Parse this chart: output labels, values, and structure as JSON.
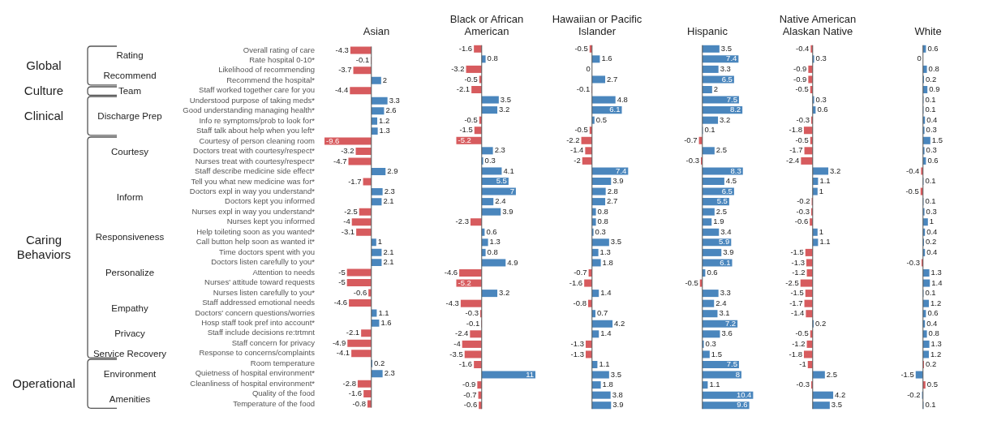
{
  "chart_data": [
    {
      "type": "bar",
      "orientation": "horizontal",
      "title": "Asian",
      "data_labels": true,
      "tick_labels": "y",
      "categories": [
        "Overall rating of care",
        "Rate hospital 0-10*",
        "Likelihood of recommending",
        "Recommend the hospital*",
        "Staff worked together care for you",
        "Understood purpose of taking meds*",
        "Good understanding managing health*",
        "Info re symptoms/prob to look for*",
        "Staff talk about help when you left*",
        "Courtesy of person cleaning room",
        "Doctors treat with courtesy/respect*",
        "Nurses treat with courtesy/respect*",
        "Staff describe medicine side effect*",
        "Tell you what new medicine was for*",
        "Doctors expl in way you understand*",
        "Doctors kept you informed",
        "Nurses expl in way you understand*",
        "Nurses kept you informed",
        "Help toileting soon as you wanted*",
        "Call button help soon as wanted it*",
        "Time doctors spent with you",
        "Doctors listen carefully to you*",
        "Attention to needs",
        "Nurses' attitude toward requests",
        "Nurses listen carefully to you*",
        "Staff addressed emotional needs",
        "Doctors' concern questions/worries",
        "Hosp staff took pref into account*",
        "Staff include decisions re:trtmnt",
        "Staff concern for privacy",
        "Response to concerns/complaints",
        "Room temperature",
        "Quietness of hospital environment*",
        "Cleanliness of hospital environment*",
        "Quality of the food",
        "Temperature of the food"
      ],
      "values": [
        -4.3,
        -0.1,
        -3.7,
        2,
        -4.4,
        3.3,
        2.6,
        1.2,
        1.3,
        -9.6,
        -3.2,
        -4.7,
        2.9,
        -1.7,
        2.3,
        2.1,
        -2.5,
        -4,
        -3.1,
        1,
        2.1,
        2.1,
        -5,
        -5,
        -0.6,
        -4.6,
        1.1,
        1.6,
        -2.1,
        -4.9,
        -4.1,
        0.2,
        2.3,
        -2.8,
        -1.6,
        -0.8
      ],
      "colors": [
        "#d75b5e",
        "#d75b5e",
        "#d75b5e",
        "#4a86bd",
        "#d75b5e",
        "#4a86bd",
        "#4a86bd",
        "#4a86bd",
        "#4a86bd",
        "#d75b5e",
        "#d75b5e",
        "#d75b5e",
        "#4a86bd",
        "#d75b5e",
        "#4a86bd",
        "#4a86bd",
        "#d75b5e",
        "#d75b5e",
        "#d75b5e",
        "#4a86bd",
        "#4a86bd",
        "#4a86bd",
        "#d75b5e",
        "#d75b5e",
        "#d75b5e",
        "#d75b5e",
        "#4a86bd",
        "#4a86bd",
        "#d75b5e",
        "#d75b5e",
        "#d75b5e",
        "#4a86bd",
        "#4a86bd",
        "#d75b5e",
        "#d75b5e",
        "#d75b5e"
      ],
      "annotations": [
        "Global",
        "Rating",
        "Recommend",
        "Culture",
        "Team",
        "Clinical",
        "Discharge Prep",
        "Caring Behaviors",
        "Courtesy",
        "Inform",
        "Responsiveness",
        "Personalize",
        "Empathy",
        "Privacy",
        "Service Recovery",
        "Operational",
        "Environment",
        "Amenities"
      ]
    },
    {
      "type": "bar",
      "orientation": "horizontal",
      "title": "Black or African American",
      "data_labels": true,
      "tick_labels": false,
      "categories": [
        null,
        null,
        null,
        null,
        null,
        null,
        null,
        null,
        null,
        null,
        null,
        null,
        null,
        null,
        null,
        null,
        null,
        null,
        null,
        null,
        null,
        null,
        null,
        null,
        null,
        null,
        null,
        null,
        null,
        null,
        null,
        null,
        null,
        null,
        null,
        null
      ],
      "values": [
        -1.6,
        0.8,
        -3.2,
        -0.5,
        -2.1,
        3.5,
        3.2,
        -0.5,
        -1.5,
        -5.2,
        2.3,
        0.3,
        4.1,
        5.5,
        7,
        2.4,
        3.9,
        -2.3,
        0.6,
        1.3,
        0.8,
        4.9,
        -4.6,
        -5.2,
        3.2,
        -4.3,
        -0.3,
        -0.1,
        -2.4,
        -4,
        -3.5,
        -1.6,
        11,
        -0.9,
        -0.7,
        -0.6
      ],
      "colors": [
        "#d75b5e",
        "#4a86bd",
        "#d75b5e",
        "#d75b5e",
        "#d75b5e",
        "#4a86bd",
        "#4a86bd",
        "#d75b5e",
        "#d75b5e",
        "#d75b5e",
        "#4a86bd",
        "#4a86bd",
        "#4a86bd",
        "#4a86bd",
        "#4a86bd",
        "#4a86bd",
        "#4a86bd",
        "#d75b5e",
        "#4a86bd",
        "#4a86bd",
        "#4a86bd",
        "#4a86bd",
        "#d75b5e",
        "#d75b5e",
        "#4a86bd",
        "#d75b5e",
        "#d75b5e",
        "#d75b5e",
        "#d75b5e",
        "#d75b5e",
        "#d75b5e",
        "#d75b5e",
        "#4a86bd",
        "#d75b5e",
        "#d75b5e",
        "#d75b5e"
      ]
    },
    {
      "type": "bar",
      "orientation": "horizontal",
      "title": "Hawaiian or Pacific Islander",
      "data_labels": true,
      "tick_labels": false,
      "categories": [
        null,
        null,
        null,
        null,
        null,
        null,
        null,
        null,
        null,
        null,
        null,
        null,
        null,
        null,
        null,
        null,
        null,
        null,
        null,
        null,
        null,
        null,
        null,
        null,
        null,
        null,
        null,
        null,
        null,
        null,
        null,
        null,
        null,
        null,
        null,
        null
      ],
      "values": [
        -0.5,
        1.6,
        0,
        2.7,
        -0.1,
        4.8,
        6.1,
        0.5,
        -0.5,
        -2.2,
        -1.4,
        -2,
        7.4,
        3.9,
        2.8,
        2.7,
        0.8,
        0.8,
        0.3,
        3.5,
        1.3,
        1.8,
        -0.7,
        -1.6,
        1.4,
        -0.8,
        0.7,
        4.2,
        1.4,
        -1.3,
        -1.3,
        1.1,
        3.5,
        1.8,
        3.8,
        3.9
      ],
      "colors": [
        "#d75b5e",
        "#4a86bd",
        "#4a86bd",
        "#4a86bd",
        "#d75b5e",
        "#4a86bd",
        "#4a86bd",
        "#4a86bd",
        "#d75b5e",
        "#d75b5e",
        "#d75b5e",
        "#d75b5e",
        "#4a86bd",
        "#4a86bd",
        "#4a86bd",
        "#4a86bd",
        "#4a86bd",
        "#4a86bd",
        "#4a86bd",
        "#4a86bd",
        "#4a86bd",
        "#4a86bd",
        "#d75b5e",
        "#d75b5e",
        "#4a86bd",
        "#d75b5e",
        "#4a86bd",
        "#4a86bd",
        "#4a86bd",
        "#d75b5e",
        "#d75b5e",
        "#4a86bd",
        "#4a86bd",
        "#4a86bd",
        "#4a86bd",
        "#4a86bd"
      ]
    },
    {
      "type": "bar",
      "orientation": "horizontal",
      "title": "Hispanic",
      "data_labels": true,
      "tick_labels": false,
      "categories": [
        null,
        null,
        null,
        null,
        null,
        null,
        null,
        null,
        null,
        null,
        null,
        null,
        null,
        null,
        null,
        null,
        null,
        null,
        null,
        null,
        null,
        null,
        null,
        null,
        null,
        null,
        null,
        null,
        null,
        null,
        null,
        null,
        null,
        null,
        null,
        null
      ],
      "values": [
        3.5,
        7.4,
        3.3,
        6.5,
        2,
        7.5,
        8.2,
        3.2,
        0.1,
        -0.7,
        2.5,
        -0.3,
        8.3,
        4.5,
        6.5,
        5.5,
        2.5,
        1.9,
        3.4,
        5.9,
        3.9,
        6.1,
        0.6,
        -0.5,
        3.3,
        2.4,
        3.1,
        7.2,
        3.6,
        0.3,
        1.5,
        7.5,
        8,
        1.1,
        10.4,
        9.6
      ],
      "colors": [
        "#4a86bd",
        "#4a86bd",
        "#4a86bd",
        "#4a86bd",
        "#4a86bd",
        "#4a86bd",
        "#4a86bd",
        "#4a86bd",
        "#4a86bd",
        "#d75b5e",
        "#4a86bd",
        "#d75b5e",
        "#4a86bd",
        "#4a86bd",
        "#4a86bd",
        "#4a86bd",
        "#4a86bd",
        "#4a86bd",
        "#4a86bd",
        "#4a86bd",
        "#4a86bd",
        "#4a86bd",
        "#4a86bd",
        "#d75b5e",
        "#4a86bd",
        "#4a86bd",
        "#4a86bd",
        "#4a86bd",
        "#4a86bd",
        "#4a86bd",
        "#4a86bd",
        "#4a86bd",
        "#4a86bd",
        "#4a86bd",
        "#4a86bd",
        "#4a86bd"
      ]
    },
    {
      "type": "bar",
      "orientation": "horizontal",
      "title": "Native American Alaskan Native",
      "data_labels": true,
      "tick_labels": false,
      "categories": [
        null,
        null,
        null,
        null,
        null,
        null,
        null,
        null,
        null,
        null,
        null,
        null,
        null,
        null,
        null,
        null,
        null,
        null,
        null,
        null,
        null,
        null,
        null,
        null,
        null,
        null,
        null,
        null,
        null,
        null,
        null,
        null,
        null,
        null,
        null,
        null
      ],
      "values": [
        -0.4,
        0.3,
        -0.9,
        -0.9,
        -0.5,
        0.3,
        0.6,
        -0.3,
        -1.8,
        -0.5,
        -1.7,
        -2.4,
        3.2,
        1.1,
        1,
        -0.2,
        -0.3,
        -0.6,
        1,
        1.1,
        -1.5,
        -1.3,
        -1.2,
        -2.5,
        -1.5,
        -1.7,
        -1.4,
        0.2,
        -0.5,
        -1.2,
        -1.8,
        -1,
        2.5,
        -0.3,
        4.2,
        3.5
      ],
      "colors": [
        "#d75b5e",
        "#4a86bd",
        "#d75b5e",
        "#d75b5e",
        "#d75b5e",
        "#4a86bd",
        "#4a86bd",
        "#d75b5e",
        "#d75b5e",
        "#d75b5e",
        "#d75b5e",
        "#d75b5e",
        "#4a86bd",
        "#4a86bd",
        "#4a86bd",
        "#d75b5e",
        "#d75b5e",
        "#d75b5e",
        "#4a86bd",
        "#4a86bd",
        "#d75b5e",
        "#d75b5e",
        "#d75b5e",
        "#d75b5e",
        "#d75b5e",
        "#d75b5e",
        "#d75b5e",
        "#4a86bd",
        "#d75b5e",
        "#d75b5e",
        "#d75b5e",
        "#d75b5e",
        "#4a86bd",
        "#d75b5e",
        "#4a86bd",
        "#4a86bd"
      ]
    },
    {
      "type": "bar",
      "orientation": "horizontal",
      "title": "White",
      "data_labels": true,
      "tick_labels": false,
      "categories": [
        null,
        null,
        null,
        null,
        null,
        null,
        null,
        null,
        null,
        null,
        null,
        null,
        null,
        null,
        null,
        null,
        null,
        null,
        null,
        null,
        null,
        null,
        null,
        null,
        null,
        null,
        null,
        null,
        null,
        null,
        null,
        null,
        null,
        null,
        null,
        null
      ],
      "values": [
        0.6,
        0,
        0.8,
        0.2,
        0.9,
        0.1,
        0.1,
        0.4,
        0.3,
        1.5,
        0.3,
        0.6,
        -0.4,
        0.1,
        -0.5,
        0.1,
        0.3,
        1,
        0.4,
        0.2,
        0.4,
        -0.3,
        1.3,
        1.4,
        0.1,
        1.2,
        0.6,
        0.4,
        0.8,
        1.3,
        1.2,
        0.2,
        -1.5,
        0.5,
        -0.2,
        0.1
      ],
      "colors": [
        "#4a86bd",
        "#4a86bd",
        "#4a86bd",
        "#4a86bd",
        "#4a86bd",
        "#4a86bd",
        "#4a86bd",
        "#4a86bd",
        "#4a86bd",
        "#4a86bd",
        "#4a86bd",
        "#4a86bd",
        "#d75b5e",
        "#4a86bd",
        "#d75b5e",
        "#4a86bd",
        "#4a86bd",
        "#4a86bd",
        "#4a86bd",
        "#4a86bd",
        "#4a86bd",
        "#d75b5e",
        "#4a86bd",
        "#4a86bd",
        "#4a86bd",
        "#4a86bd",
        "#4a86bd",
        "#4a86bd",
        "#4a86bd",
        "#4a86bd",
        "#4a86bd",
        "#d75b5e",
        "#4a86bd",
        "#d75b5e",
        "#4a86bd",
        "#4a86bd"
      ]
    }
  ]
}
